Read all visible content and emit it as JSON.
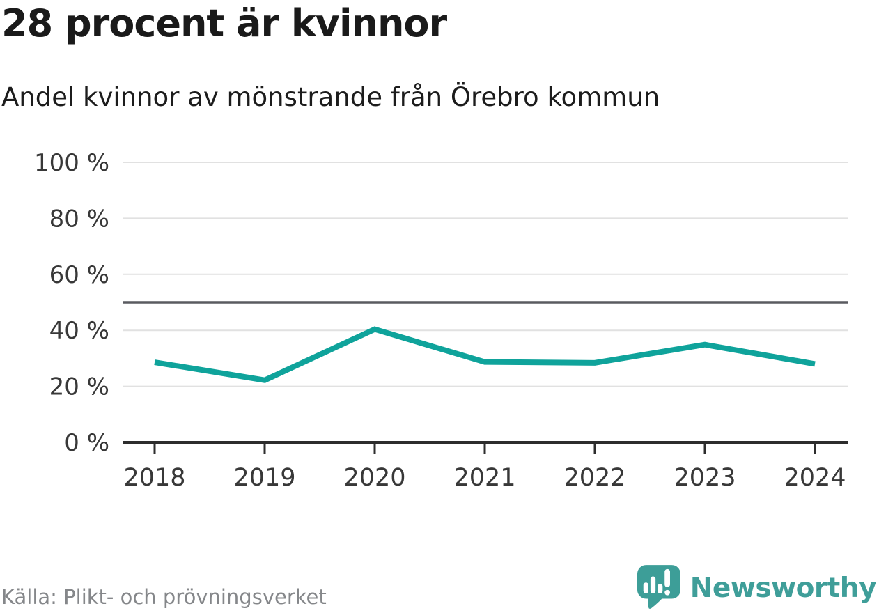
{
  "header": {
    "title": "28 procent är kvinnor",
    "subtitle": "Andel kvinnor av mönstrande från Örebro kommun"
  },
  "chart_data": {
    "type": "line",
    "title": "28 procent är kvinnor",
    "subtitle": "Andel kvinnor av mönstrande från Örebro kommun",
    "categories": [
      "2018",
      "2019",
      "2020",
      "2021",
      "2022",
      "2023",
      "2024"
    ],
    "series": [
      {
        "name": "Andel kvinnor",
        "values": [
          28.6,
          22.2,
          40.4,
          28.7,
          28.4,
          34.9,
          28.0
        ]
      }
    ],
    "xlabel": "",
    "ylabel": "",
    "ylim": [
      0,
      100
    ],
    "yticks": [
      0,
      20,
      40,
      60,
      80,
      100
    ],
    "ytick_labels": [
      "0 %",
      "20 %",
      "40 %",
      "60 %",
      "80 %",
      "100 %"
    ],
    "reference_line": {
      "value": 50
    },
    "grid": "horizontal",
    "legend": "none"
  },
  "footer": {
    "source": "Källa: Plikt- och prövningsverket",
    "brand": "Newsworthy"
  },
  "colors": {
    "line": "#0fa39b",
    "grid": "#e1e1e1",
    "axis": "#2d2d2d",
    "reference": "#5a5b60",
    "tick_label": "#383838",
    "brand_teal": "#3d9e98",
    "source_gray": "#85878a"
  }
}
